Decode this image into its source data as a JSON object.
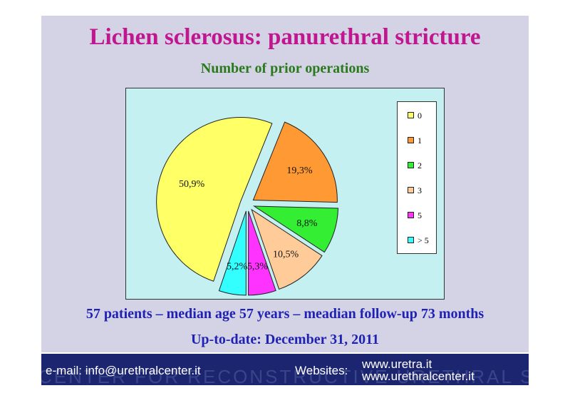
{
  "slide": {
    "title": "Lichen sclerosus: panurethral stricture",
    "subtitle": "Number of prior operations",
    "info_line_1": "57 patients – median age 57 years – meadian follow-up 73 months",
    "info_line_2": "Up-to-date: December 31, 2011"
  },
  "footer": {
    "email": "e-mail: info@urethralcenter.it",
    "websites_label": "Websites:",
    "url_1": "www.uretra.it",
    "url_2": "www.urethralcenter.it",
    "watermark": "CENTER FOR RECONSTRUCTIVE URETHRAL SURGERY"
  },
  "chart_data": {
    "type": "pie",
    "title": "Number of prior operations",
    "categories": [
      "0",
      "1",
      "2",
      "3",
      "5",
      "> 5"
    ],
    "values": [
      50.9,
      19.3,
      8.8,
      10.5,
      5.3,
      5.2
    ],
    "data_labels": [
      "50,9%",
      "19,3%",
      "8,8%",
      "10,5%",
      "5,3%",
      "5,2%"
    ],
    "colors": [
      "#ffff66",
      "#ff9933",
      "#33ee33",
      "#ffcc99",
      "#ff33ff",
      "#33ffff"
    ],
    "exploded": true,
    "legend": "right"
  }
}
